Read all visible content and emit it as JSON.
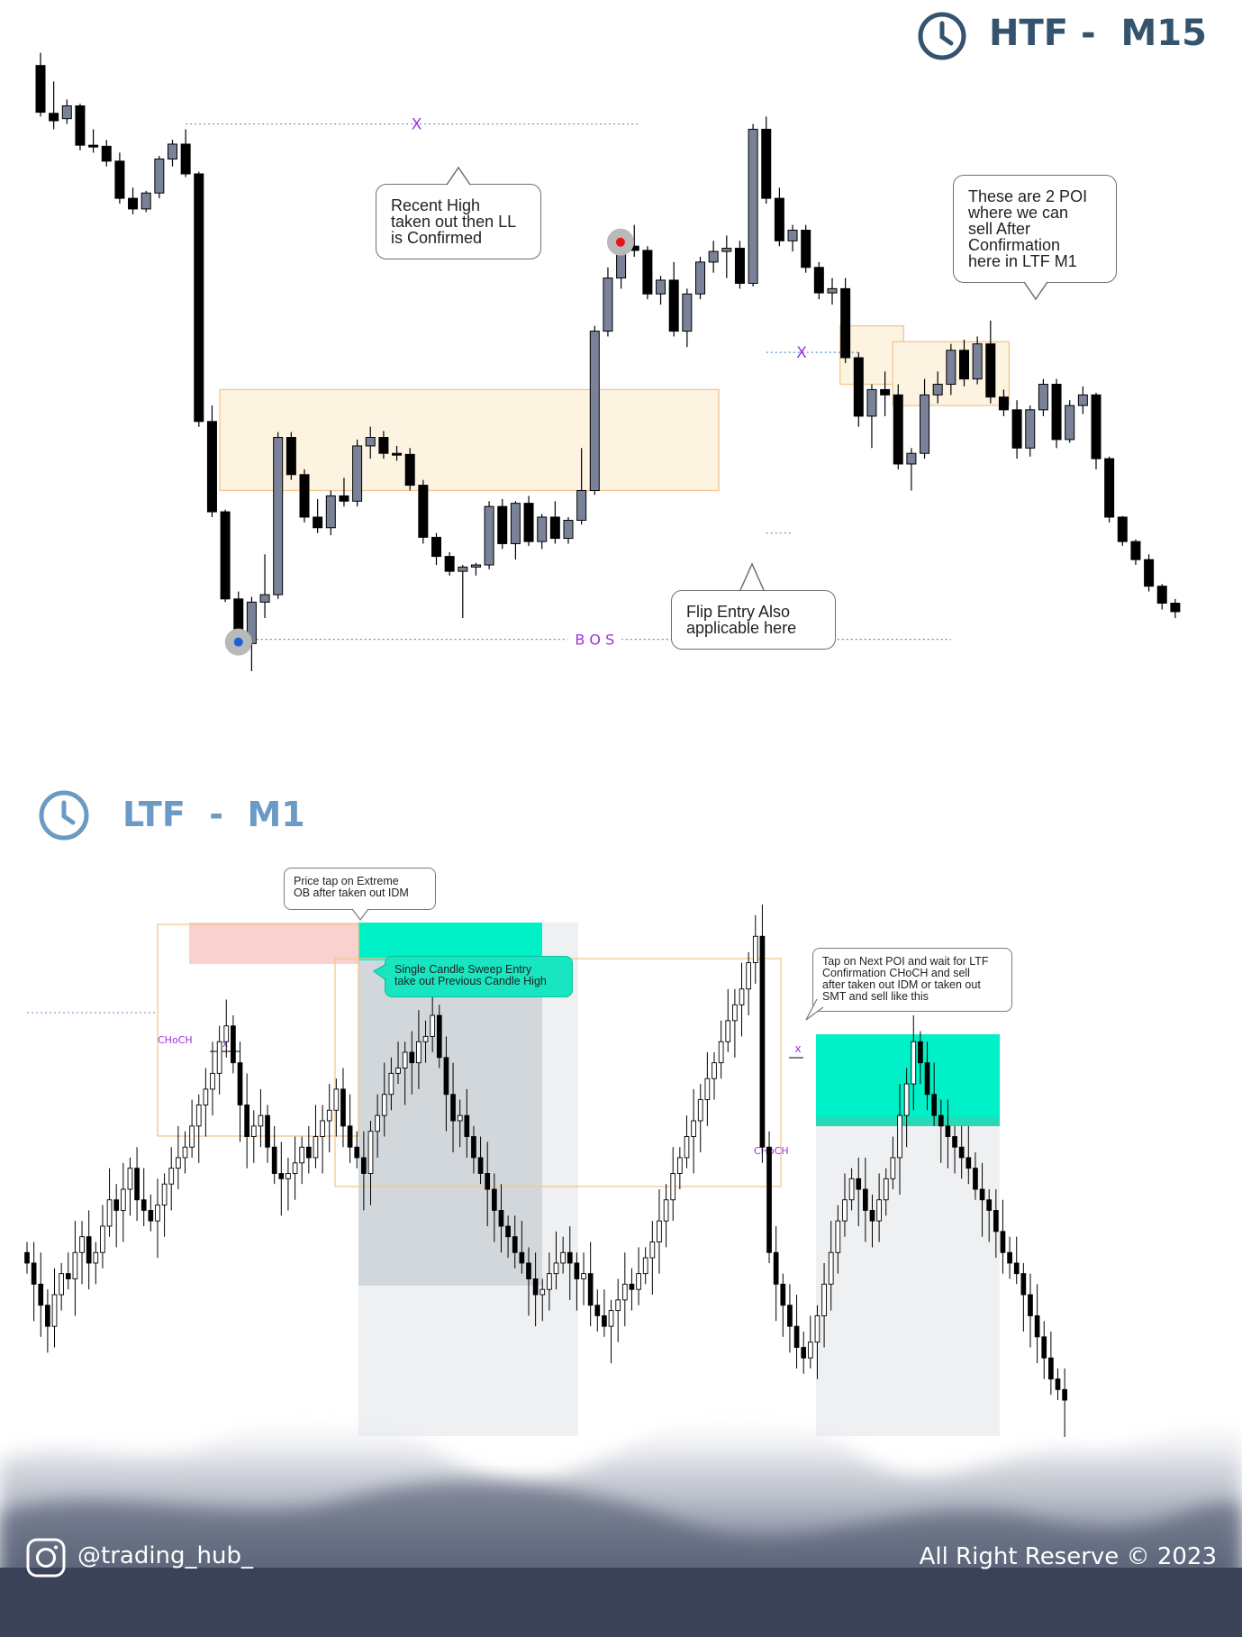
{
  "htf": {
    "title": "HTF -  M15",
    "clock_icon": "clock-icon",
    "color": "#34536e"
  },
  "ltf": {
    "title": "LTF  -  M1",
    "clock_icon": "clock-icon",
    "color": "#6b9ac4"
  },
  "annotations": {
    "recent_high": "Recent High\ntaken out then LL\nis Confirmed",
    "poi_note": "These are 2 POI\nwhere we can\nsell After\nConfirmation\nhere in LTF M1",
    "flip_entry": "Flip Entry Also\napplicable here",
    "bos_label": "B O S",
    "x_marker": "X",
    "price_tap": "Price tap on Extreme\nOB after taken out IDM",
    "single_candle": "Single Candle Sweep Entry\ntake out Previous Candle High",
    "next_poi": "Tap on Next POI and wait for LTF\nConfirmation CHoCH and sell\nafter taken out IDM or taken out\nSMT and sell like this",
    "choch_label": "CHoCH",
    "x_small": "x"
  },
  "footer": {
    "instagram_icon": "instagram-icon",
    "handle": "@trading_hub_",
    "copyright": "All Right Reserve © 2023"
  },
  "colors": {
    "bull": "#7a8299",
    "bear": "#000000",
    "zone_fill": "#fdf3e1",
    "zone_stroke": "#f3c690",
    "teal": "#00f0c8",
    "pink": "#f9d1cf",
    "gray_zone": "#d2d7dc",
    "light_gray_zone": "#eef0f2",
    "level_line": "#5b8fc9",
    "purple_text": "#9b30e0",
    "footer_dark": "#3a4258"
  },
  "chart_data": [
    {
      "type": "candlestick",
      "title": "HTF -  M15",
      "candles": [
        {
          "o": 1000,
          "h": 1012,
          "l": 952,
          "c": 956
        },
        {
          "o": 955,
          "h": 985,
          "l": 940,
          "c": 948
        },
        {
          "o": 950,
          "h": 968,
          "l": 945,
          "c": 962
        },
        {
          "o": 962,
          "h": 964,
          "l": 920,
          "c": 925
        },
        {
          "o": 925,
          "h": 940,
          "l": 918,
          "c": 924
        },
        {
          "o": 924,
          "h": 930,
          "l": 905,
          "c": 910
        },
        {
          "o": 910,
          "h": 918,
          "l": 870,
          "c": 875
        },
        {
          "o": 875,
          "h": 885,
          "l": 860,
          "c": 865
        },
        {
          "o": 865,
          "h": 882,
          "l": 862,
          "c": 880
        },
        {
          "o": 880,
          "h": 915,
          "l": 875,
          "c": 912
        },
        {
          "o": 912,
          "h": 930,
          "l": 905,
          "c": 926
        },
        {
          "o": 926,
          "h": 940,
          "l": 895,
          "c": 898
        },
        {
          "o": 898,
          "h": 900,
          "l": 660,
          "c": 665
        },
        {
          "o": 665,
          "h": 680,
          "l": 575,
          "c": 580
        },
        {
          "o": 580,
          "h": 582,
          "l": 495,
          "c": 498
        },
        {
          "o": 498,
          "h": 505,
          "l": 450,
          "c": 456
        },
        {
          "o": 456,
          "h": 500,
          "l": 430,
          "c": 495
        },
        {
          "o": 495,
          "h": 540,
          "l": 480,
          "c": 502
        },
        {
          "o": 502,
          "h": 655,
          "l": 498,
          "c": 650
        },
        {
          "o": 650,
          "h": 655,
          "l": 610,
          "c": 615
        },
        {
          "o": 615,
          "h": 620,
          "l": 570,
          "c": 575
        },
        {
          "o": 575,
          "h": 592,
          "l": 560,
          "c": 565
        },
        {
          "o": 565,
          "h": 600,
          "l": 558,
          "c": 595
        },
        {
          "o": 595,
          "h": 612,
          "l": 585,
          "c": 590
        },
        {
          "o": 590,
          "h": 648,
          "l": 585,
          "c": 642
        },
        {
          "o": 642,
          "h": 660,
          "l": 630,
          "c": 650
        },
        {
          "o": 650,
          "h": 656,
          "l": 630,
          "c": 635
        },
        {
          "o": 635,
          "h": 642,
          "l": 628,
          "c": 634
        },
        {
          "o": 634,
          "h": 640,
          "l": 600,
          "c": 605
        },
        {
          "o": 605,
          "h": 610,
          "l": 550,
          "c": 556
        },
        {
          "o": 556,
          "h": 560,
          "l": 530,
          "c": 538
        },
        {
          "o": 538,
          "h": 542,
          "l": 520,
          "c": 524
        },
        {
          "o": 524,
          "h": 530,
          "l": 480,
          "c": 528
        },
        {
          "o": 528,
          "h": 532,
          "l": 520,
          "c": 530
        },
        {
          "o": 530,
          "h": 590,
          "l": 526,
          "c": 585
        },
        {
          "o": 585,
          "h": 592,
          "l": 545,
          "c": 550
        },
        {
          "o": 550,
          "h": 590,
          "l": 535,
          "c": 588
        },
        {
          "o": 588,
          "h": 595,
          "l": 548,
          "c": 552
        },
        {
          "o": 552,
          "h": 578,
          "l": 545,
          "c": 575
        },
        {
          "o": 575,
          "h": 590,
          "l": 550,
          "c": 555
        },
        {
          "o": 555,
          "h": 575,
          "l": 550,
          "c": 572
        },
        {
          "o": 572,
          "h": 640,
          "l": 568,
          "c": 600
        },
        {
          "o": 600,
          "h": 755,
          "l": 596,
          "c": 750
        },
        {
          "o": 750,
          "h": 810,
          "l": 745,
          "c": 800
        },
        {
          "o": 800,
          "h": 835,
          "l": 790,
          "c": 830
        },
        {
          "o": 830,
          "h": 850,
          "l": 820,
          "c": 826
        },
        {
          "o": 826,
          "h": 830,
          "l": 780,
          "c": 785
        },
        {
          "o": 785,
          "h": 802,
          "l": 775,
          "c": 798
        },
        {
          "o": 798,
          "h": 815,
          "l": 745,
          "c": 750
        },
        {
          "o": 750,
          "h": 790,
          "l": 735,
          "c": 785
        },
        {
          "o": 785,
          "h": 820,
          "l": 780,
          "c": 815
        },
        {
          "o": 815,
          "h": 835,
          "l": 805,
          "c": 825
        },
        {
          "o": 825,
          "h": 840,
          "l": 800,
          "c": 828
        },
        {
          "o": 828,
          "h": 835,
          "l": 790,
          "c": 795
        },
        {
          "o": 795,
          "h": 945,
          "l": 792,
          "c": 940
        },
        {
          "o": 940,
          "h": 952,
          "l": 870,
          "c": 875
        },
        {
          "o": 875,
          "h": 885,
          "l": 830,
          "c": 835
        },
        {
          "o": 835,
          "h": 850,
          "l": 825,
          "c": 845
        },
        {
          "o": 845,
          "h": 850,
          "l": 805,
          "c": 810
        },
        {
          "o": 810,
          "h": 815,
          "l": 780,
          "c": 786
        },
        {
          "o": 786,
          "h": 800,
          "l": 775,
          "c": 790
        },
        {
          "o": 790,
          "h": 800,
          "l": 720,
          "c": 725
        },
        {
          "o": 725,
          "h": 730,
          "l": 660,
          "c": 670
        },
        {
          "o": 670,
          "h": 700,
          "l": 640,
          "c": 695
        },
        {
          "o": 695,
          "h": 712,
          "l": 670,
          "c": 690
        },
        {
          "o": 690,
          "h": 700,
          "l": 620,
          "c": 625
        },
        {
          "o": 625,
          "h": 640,
          "l": 600,
          "c": 635
        },
        {
          "o": 635,
          "h": 705,
          "l": 630,
          "c": 690
        },
        {
          "o": 690,
          "h": 712,
          "l": 682,
          "c": 700
        },
        {
          "o": 700,
          "h": 738,
          "l": 690,
          "c": 732
        },
        {
          "o": 732,
          "h": 742,
          "l": 698,
          "c": 705
        },
        {
          "o": 705,
          "h": 745,
          "l": 700,
          "c": 738
        },
        {
          "o": 738,
          "h": 760,
          "l": 682,
          "c": 688
        },
        {
          "o": 688,
          "h": 695,
          "l": 670,
          "c": 676
        },
        {
          "o": 676,
          "h": 685,
          "l": 630,
          "c": 640
        },
        {
          "o": 640,
          "h": 680,
          "l": 632,
          "c": 676
        },
        {
          "o": 676,
          "h": 705,
          "l": 670,
          "c": 700
        },
        {
          "o": 700,
          "h": 705,
          "l": 640,
          "c": 648
        },
        {
          "o": 648,
          "h": 685,
          "l": 645,
          "c": 680
        },
        {
          "o": 680,
          "h": 698,
          "l": 672,
          "c": 690
        },
        {
          "o": 690,
          "h": 692,
          "l": 620,
          "c": 630
        },
        {
          "o": 630,
          "h": 632,
          "l": 570,
          "c": 575
        },
        {
          "o": 575,
          "h": 576,
          "l": 548,
          "c": 552
        },
        {
          "o": 552,
          "h": 554,
          "l": 530,
          "c": 535
        },
        {
          "o": 535,
          "h": 540,
          "l": 505,
          "c": 510
        },
        {
          "o": 510,
          "h": 512,
          "l": 488,
          "c": 494
        },
        {
          "o": 494,
          "h": 498,
          "l": 480,
          "c": 486
        }
      ],
      "levels": {
        "recent_high": 945,
        "bos": 460,
        "poi_level": 730
      },
      "zones": [
        {
          "label": "flip-entry-zone",
          "from": 14,
          "to": 51,
          "top": 695,
          "bottom": 600
        },
        {
          "label": "poi-zone-1",
          "from": 61,
          "to": 65,
          "top": 755,
          "bottom": 700
        },
        {
          "label": "poi-zone-2",
          "from": 65,
          "to": 73,
          "top": 740,
          "bottom": 680
        }
      ]
    },
    {
      "type": "candlestick",
      "title": "LTF  -  M1",
      "series_close": [
        148,
        144,
        140,
        136,
        142,
        146,
        145,
        150,
        153,
        148,
        150,
        155,
        160,
        158,
        162,
        166,
        160,
        158,
        156,
        159,
        163,
        166,
        168,
        170,
        174,
        178,
        181,
        184,
        190,
        193,
        186,
        178,
        172,
        174,
        176,
        170,
        165,
        164,
        165,
        167,
        170,
        168,
        172,
        175,
        177,
        181,
        174,
        170,
        168,
        165,
        173,
        176,
        180,
        184,
        185,
        188,
        186,
        190,
        191,
        195,
        187,
        180,
        175,
        176,
        172,
        168,
        165,
        162,
        158,
        155,
        153,
        150,
        148,
        145,
        142,
        143,
        146,
        148,
        150,
        148,
        145,
        146,
        140,
        138,
        136,
        139,
        141,
        144,
        143,
        146,
        149,
        152,
        156,
        160,
        165,
        168,
        172,
        175,
        179,
        183,
        186,
        190,
        194,
        197,
        200,
        205,
        210,
        170,
        150,
        144,
        140,
        136,
        132,
        130,
        133,
        138,
        144,
        150,
        156,
        160,
        164,
        162,
        158,
        156,
        160,
        164,
        168,
        176,
        182,
        190,
        186,
        180,
        176,
        174,
        172,
        170,
        168,
        166,
        162,
        160,
        158,
        154,
        150,
        148,
        146,
        142,
        138,
        134,
        130,
        126,
        124,
        122
      ]
    }
  ]
}
